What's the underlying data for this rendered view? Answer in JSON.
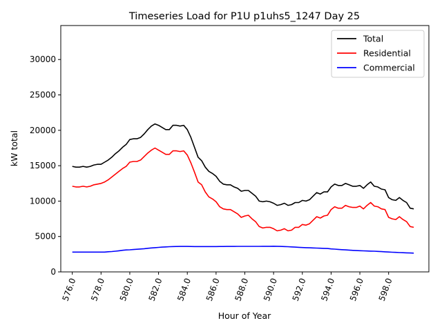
{
  "chart_data": {
    "type": "line",
    "title": "Timeseries Load for P1U p1uhs5_1247  Day 25",
    "xlabel": "Hour of Year",
    "ylabel": "kW total",
    "xlim": [
      575.2,
      600.8
    ],
    "ylim": [
      0,
      34800
    ],
    "xticks": [
      576,
      578,
      580,
      582,
      584,
      586,
      588,
      590,
      592,
      594,
      596,
      598
    ],
    "xtick_labels": [
      "576.0",
      "578.0",
      "580.0",
      "582.0",
      "584.0",
      "586.0",
      "588.0",
      "590.0",
      "592.0",
      "594.0",
      "596.0",
      "598.0"
    ],
    "yticks": [
      0,
      5000,
      10000,
      15000,
      20000,
      25000,
      30000
    ],
    "ytick_labels": [
      "0",
      "5000",
      "10000",
      "15000",
      "20000",
      "25000",
      "30000"
    ],
    "grid": false,
    "legend_position": "top-right",
    "x": [
      576.0,
      576.25,
      576.5,
      576.75,
      577.0,
      577.25,
      577.5,
      577.75,
      578.0,
      578.25,
      578.5,
      578.75,
      579.0,
      579.25,
      579.5,
      579.75,
      580.0,
      580.25,
      580.5,
      580.75,
      581.0,
      581.25,
      581.5,
      581.75,
      582.0,
      582.25,
      582.5,
      582.75,
      583.0,
      583.25,
      583.5,
      583.75,
      584.0,
      584.25,
      584.5,
      584.75,
      585.0,
      585.25,
      585.5,
      585.75,
      586.0,
      586.25,
      586.5,
      586.75,
      587.0,
      587.25,
      587.5,
      587.75,
      588.0,
      588.25,
      588.5,
      588.75,
      589.0,
      589.25,
      589.5,
      589.75,
      590.0,
      590.25,
      590.5,
      590.75,
      591.0,
      591.25,
      591.5,
      591.75,
      592.0,
      592.25,
      592.5,
      592.75,
      593.0,
      593.25,
      593.5,
      593.75,
      594.0,
      594.25,
      594.5,
      594.75,
      595.0,
      595.25,
      595.5,
      595.75,
      596.0,
      596.25,
      596.5,
      596.75,
      597.0,
      597.25,
      597.5,
      597.75,
      598.0,
      598.25,
      598.5,
      598.75,
      599.0,
      599.25,
      599.5,
      599.75
    ],
    "series": [
      {
        "name": "Total",
        "color": "#000000",
        "values": [
          14900,
          14800,
          14800,
          14900,
          14800,
          14900,
          15100,
          15200,
          15200,
          15500,
          15800,
          16200,
          16700,
          17100,
          17600,
          18000,
          18700,
          18800,
          18800,
          19000,
          19500,
          20100,
          20600,
          20900,
          20700,
          20400,
          20100,
          20100,
          20700,
          20700,
          20600,
          20700,
          20100,
          19000,
          17600,
          16200,
          15700,
          14800,
          14200,
          13900,
          13500,
          12800,
          12400,
          12300,
          12300,
          12000,
          11800,
          11400,
          11500,
          11500,
          11100,
          10700,
          10000,
          9900,
          10000,
          9900,
          9700,
          9400,
          9500,
          9700,
          9400,
          9500,
          9800,
          9800,
          10100,
          10000,
          10200,
          10700,
          11200,
          11000,
          11300,
          11300,
          12000,
          12400,
          12200,
          12200,
          12500,
          12300,
          12100,
          12100,
          12200,
          11800,
          12300,
          12700,
          12100,
          12000,
          11700,
          11600,
          10500,
          10200,
          10100,
          10500,
          10100,
          9800,
          9000,
          8900
        ]
      },
      {
        "name": "Residential",
        "color": "#ff0000",
        "values": [
          12100,
          12000,
          12000,
          12100,
          12000,
          12100,
          12300,
          12400,
          12500,
          12700,
          13000,
          13400,
          13800,
          14200,
          14600,
          14900,
          15500,
          15600,
          15600,
          15800,
          16300,
          16800,
          17200,
          17500,
          17200,
          16900,
          16600,
          16600,
          17100,
          17100,
          17000,
          17100,
          16500,
          15400,
          14100,
          12700,
          12300,
          11300,
          10600,
          10300,
          9900,
          9200,
          8900,
          8800,
          8800,
          8500,
          8200,
          7700,
          7900,
          8000,
          7500,
          7100,
          6400,
          6200,
          6300,
          6300,
          6100,
          5800,
          5900,
          6100,
          5800,
          5900,
          6300,
          6300,
          6700,
          6600,
          6800,
          7300,
          7800,
          7600,
          7900,
          8000,
          8800,
          9200,
          9000,
          9000,
          9400,
          9200,
          9100,
          9100,
          9300,
          8900,
          9400,
          9800,
          9300,
          9200,
          8900,
          8800,
          7700,
          7500,
          7400,
          7800,
          7400,
          7100,
          6400,
          6300
        ]
      },
      {
        "name": "Commercial",
        "color": "#0000ff",
        "values": [
          2800,
          2800,
          2800,
          2800,
          2800,
          2800,
          2800,
          2800,
          2800,
          2800,
          2850,
          2880,
          2920,
          2980,
          3050,
          3100,
          3120,
          3160,
          3200,
          3240,
          3280,
          3330,
          3380,
          3420,
          3460,
          3500,
          3530,
          3560,
          3580,
          3590,
          3600,
          3600,
          3600,
          3590,
          3580,
          3580,
          3580,
          3580,
          3580,
          3580,
          3580,
          3590,
          3590,
          3600,
          3600,
          3600,
          3610,
          3610,
          3610,
          3610,
          3610,
          3610,
          3610,
          3620,
          3620,
          3620,
          3630,
          3620,
          3600,
          3580,
          3560,
          3530,
          3500,
          3470,
          3440,
          3420,
          3400,
          3380,
          3360,
          3340,
          3320,
          3300,
          3250,
          3220,
          3180,
          3140,
          3110,
          3080,
          3040,
          3010,
          2990,
          2970,
          2950,
          2930,
          2920,
          2900,
          2870,
          2840,
          2810,
          2780,
          2760,
          2730,
          2710,
          2690,
          2670,
          2650
        ]
      }
    ]
  }
}
